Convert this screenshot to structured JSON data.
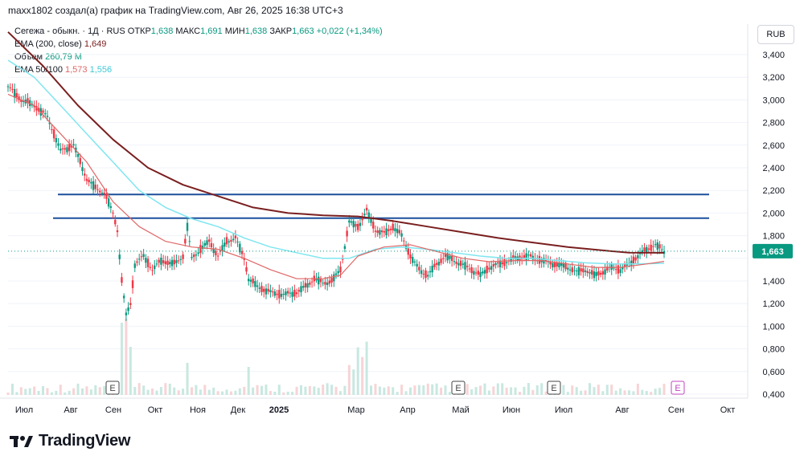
{
  "header": {
    "text": "maxx1802 создал(а) график на TradingView.com, Авг 26, 2025 16:38 UTC+3"
  },
  "legend": {
    "symbol": "Сегежа - обыкн. · 1Д · RUS",
    "open_label": "ОТКР",
    "open_value": "1,638",
    "high_label": "МАКС",
    "high_value": "1,691",
    "low_label": "МИН",
    "low_value": "1,638",
    "close_label": "ЗАКР",
    "close_value": "1,663",
    "change_value": "+0,022 (+1,34%)",
    "ema200_label": "EMA (200, close)",
    "ema200_value": "1,649",
    "volume_label": "Объем",
    "volume_value": "260,79 M",
    "ema50_100_label": "EMA 50/100",
    "ema50_value": "1,573",
    "ema100_value": "1,556"
  },
  "currency_button": "RUB",
  "brand": {
    "name": "TradingView",
    "icon": "tradingview-logo-icon"
  },
  "colors": {
    "up": "#089981",
    "down": "#f23645",
    "ema200": "#7a1f1f",
    "ema50": "#e06666",
    "ema100": "#7fe6f0",
    "hline": "#1c4f9c",
    "price_tag": "#089981",
    "earnings": "#444444",
    "earnings_future": "#c044c0"
  },
  "chart_data": {
    "type": "candlestick",
    "ylim": [
      0.4,
      3.5
    ],
    "y_ticks": [
      "3,400",
      "3,200",
      "3,000",
      "2,800",
      "2,600",
      "2,400",
      "2,200",
      "2,000",
      "1,800",
      "1,600",
      "1,400",
      "1,200",
      "1,000",
      "0,800",
      "0,600",
      "0,400"
    ],
    "y_tick_values": [
      3.4,
      3.2,
      3.0,
      2.8,
      2.6,
      2.4,
      2.2,
      2.0,
      1.8,
      1.6,
      1.4,
      1.2,
      1.0,
      0.8,
      0.6,
      0.4
    ],
    "x_ticks": [
      "Июл",
      "Авг",
      "Сен",
      "Окт",
      "Ноя",
      "Дек",
      "2025",
      "Мар",
      "Апр",
      "Май",
      "Июн",
      "Июл",
      "Авг",
      "Сен",
      "Окт"
    ],
    "last_price": {
      "value": 1.663,
      "label": "1,663"
    },
    "horizontal_lines": [
      2.164,
      1.955
    ],
    "price_path": [
      [
        0,
        3.12
      ],
      [
        3,
        3.0
      ],
      [
        6,
        2.95
      ],
      [
        9,
        2.85
      ],
      [
        12,
        2.55
      ],
      [
        15,
        2.6
      ],
      [
        18,
        2.3
      ],
      [
        20,
        2.22
      ],
      [
        22,
        2.18
      ],
      [
        24,
        2.0
      ],
      [
        25,
        1.85
      ],
      [
        26,
        1.4
      ],
      [
        27,
        1.1
      ],
      [
        28,
        1.2
      ],
      [
        29,
        1.55
      ],
      [
        31,
        1.62
      ],
      [
        33,
        1.5
      ],
      [
        35,
        1.58
      ],
      [
        38,
        1.55
      ],
      [
        40,
        1.62
      ],
      [
        41,
        1.88
      ],
      [
        42,
        1.6
      ],
      [
        44,
        1.68
      ],
      [
        46,
        1.75
      ],
      [
        48,
        1.62
      ],
      [
        50,
        1.75
      ],
      [
        52,
        1.78
      ],
      [
        54,
        1.6
      ],
      [
        55,
        1.42
      ],
      [
        57,
        1.35
      ],
      [
        60,
        1.3
      ],
      [
        63,
        1.28
      ],
      [
        66,
        1.3
      ],
      [
        68,
        1.35
      ],
      [
        70,
        1.42
      ],
      [
        72,
        1.38
      ],
      [
        74,
        1.4
      ],
      [
        76,
        1.5
      ],
      [
        78,
        1.92
      ],
      [
        80,
        1.88
      ],
      [
        82,
        2.02
      ],
      [
        84,
        1.85
      ],
      [
        86,
        1.82
      ],
      [
        88,
        1.88
      ],
      [
        90,
        1.8
      ],
      [
        92,
        1.62
      ],
      [
        94,
        1.5
      ],
      [
        96,
        1.45
      ],
      [
        98,
        1.55
      ],
      [
        100,
        1.62
      ],
      [
        103,
        1.56
      ],
      [
        106,
        1.5
      ],
      [
        108,
        1.45
      ],
      [
        110,
        1.52
      ],
      [
        113,
        1.56
      ],
      [
        116,
        1.6
      ],
      [
        119,
        1.62
      ],
      [
        122,
        1.58
      ],
      [
        125,
        1.55
      ],
      [
        128,
        1.52
      ],
      [
        130,
        1.48
      ],
      [
        132,
        1.5
      ],
      [
        134,
        1.45
      ],
      [
        136,
        1.48
      ],
      [
        138,
        1.52
      ],
      [
        140,
        1.5
      ],
      [
        142,
        1.55
      ],
      [
        144,
        1.62
      ],
      [
        146,
        1.68
      ],
      [
        148,
        1.72
      ],
      [
        150,
        1.66
      ]
    ],
    "ema200": [
      [
        0,
        3.6
      ],
      [
        8,
        3.3
      ],
      [
        16,
        2.95
      ],
      [
        24,
        2.65
      ],
      [
        32,
        2.4
      ],
      [
        40,
        2.25
      ],
      [
        48,
        2.15
      ],
      [
        56,
        2.05
      ],
      [
        64,
        2.0
      ],
      [
        72,
        1.98
      ],
      [
        80,
        1.97
      ],
      [
        88,
        1.93
      ],
      [
        96,
        1.88
      ],
      [
        104,
        1.83
      ],
      [
        112,
        1.78
      ],
      [
        120,
        1.74
      ],
      [
        128,
        1.7
      ],
      [
        136,
        1.67
      ],
      [
        142,
        1.65
      ],
      [
        150,
        1.649
      ]
    ],
    "ema50": [
      [
        0,
        3.05
      ],
      [
        6,
        2.95
      ],
      [
        12,
        2.7
      ],
      [
        18,
        2.45
      ],
      [
        24,
        2.1
      ],
      [
        30,
        1.88
      ],
      [
        36,
        1.75
      ],
      [
        42,
        1.7
      ],
      [
        48,
        1.68
      ],
      [
        54,
        1.6
      ],
      [
        60,
        1.5
      ],
      [
        66,
        1.42
      ],
      [
        72,
        1.42
      ],
      [
        76,
        1.45
      ],
      [
        80,
        1.62
      ],
      [
        86,
        1.7
      ],
      [
        92,
        1.72
      ],
      [
        98,
        1.66
      ],
      [
        104,
        1.6
      ],
      [
        110,
        1.57
      ],
      [
        116,
        1.58
      ],
      [
        122,
        1.58
      ],
      [
        128,
        1.55
      ],
      [
        134,
        1.52
      ],
      [
        140,
        1.52
      ],
      [
        146,
        1.55
      ],
      [
        150,
        1.573
      ]
    ],
    "ema100": [
      [
        0,
        3.35
      ],
      [
        6,
        3.2
      ],
      [
        12,
        2.95
      ],
      [
        18,
        2.7
      ],
      [
        24,
        2.45
      ],
      [
        30,
        2.2
      ],
      [
        36,
        2.05
      ],
      [
        42,
        1.95
      ],
      [
        48,
        1.88
      ],
      [
        54,
        1.78
      ],
      [
        60,
        1.7
      ],
      [
        66,
        1.65
      ],
      [
        72,
        1.6
      ],
      [
        78,
        1.6
      ],
      [
        84,
        1.68
      ],
      [
        90,
        1.7
      ],
      [
        96,
        1.68
      ],
      [
        102,
        1.65
      ],
      [
        108,
        1.62
      ],
      [
        114,
        1.6
      ],
      [
        120,
        1.6
      ],
      [
        126,
        1.58
      ],
      [
        132,
        1.56
      ],
      [
        138,
        1.55
      ],
      [
        144,
        1.55
      ],
      [
        150,
        1.556
      ]
    ],
    "earnings_markers": [
      {
        "x_index": 25,
        "label": "E"
      },
      {
        "x_index": 107,
        "label": "E"
      },
      {
        "x_index": 128,
        "label": "E"
      },
      {
        "x_index": 158,
        "label": "E"
      }
    ]
  }
}
